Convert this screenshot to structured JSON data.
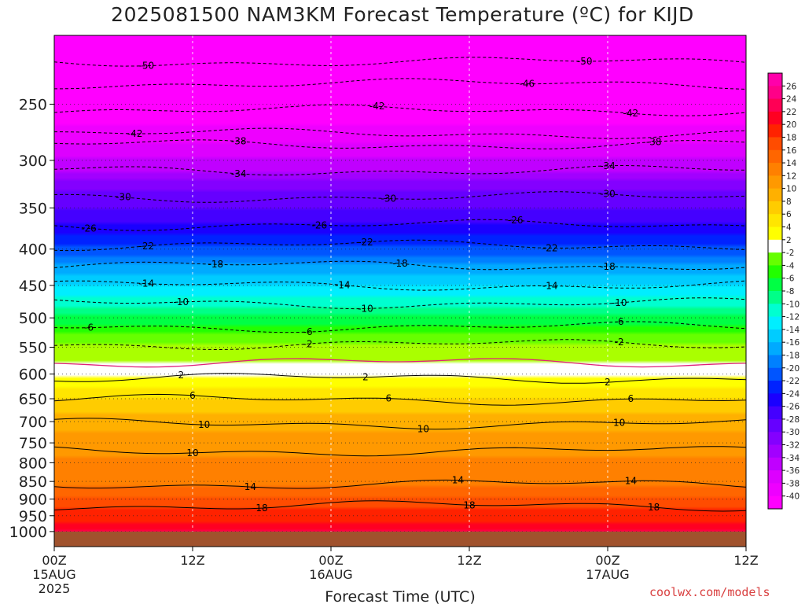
{
  "title": "2025081500 NAM3KM Forecast Temperature (ºC) for KIJD",
  "watermark": "coolwx.com/models",
  "chart_data": {
    "type": "heatmap",
    "title": "2025081500 NAM3KM Forecast Temperature (ºC) for KIJD",
    "xlabel": "Forecast Time (UTC)",
    "ylabel": "",
    "x_range_hours": [
      0,
      60
    ],
    "y_scale": "log-pressure",
    "y_range_hPa": [
      1050,
      200
    ],
    "grid": true,
    "x_ticks": [
      {
        "hour": 0,
        "label": "00Z",
        "sub1": "15AUG",
        "sub2": "2025"
      },
      {
        "hour": 12,
        "label": "12Z",
        "sub1": "",
        "sub2": ""
      },
      {
        "hour": 24,
        "label": "00Z",
        "sub1": "16AUG",
        "sub2": ""
      },
      {
        "hour": 36,
        "label": "12Z",
        "sub1": "",
        "sub2": ""
      },
      {
        "hour": 48,
        "label": "00Z",
        "sub1": "17AUG",
        "sub2": ""
      },
      {
        "hour": 60,
        "label": "12Z",
        "sub1": "",
        "sub2": ""
      }
    ],
    "y_ticks": [
      {
        "p": 250,
        "label": "250"
      },
      {
        "p": 300,
        "label": "300"
      },
      {
        "p": 350,
        "label": "350"
      },
      {
        "p": 400,
        "label": "400"
      },
      {
        "p": 450,
        "label": "450"
      },
      {
        "p": 500,
        "label": "500"
      },
      {
        "p": 550,
        "label": "550"
      },
      {
        "p": 600,
        "label": "600"
      },
      {
        "p": 650,
        "label": "650"
      },
      {
        "p": 700,
        "label": "700"
      },
      {
        "p": 750,
        "label": "750"
      },
      {
        "p": 800,
        "label": "800"
      },
      {
        "p": 850,
        "label": "850"
      },
      {
        "p": 900,
        "label": "900"
      },
      {
        "p": 950,
        "label": "950"
      },
      {
        "p": 1000,
        "label": "1000"
      }
    ],
    "surface_pressure_hPa": 1000,
    "surface_color": "#a0522d",
    "temperature_profile": [
      {
        "p": 200,
        "t": -52
      },
      {
        "p": 220,
        "t": -50
      },
      {
        "p": 235,
        "t": -46
      },
      {
        "p": 250,
        "t": -42
      },
      {
        "p": 282,
        "t": -38
      },
      {
        "p": 310,
        "t": -34
      },
      {
        "p": 330,
        "t": -30
      },
      {
        "p": 370,
        "t": -26
      },
      {
        "p": 395,
        "t": -22
      },
      {
        "p": 420,
        "t": -18
      },
      {
        "p": 450,
        "t": -14
      },
      {
        "p": 483,
        "t": -10
      },
      {
        "p": 510,
        "t": -6
      },
      {
        "p": 545,
        "t": -2
      },
      {
        "p": 575,
        "t": 0
      },
      {
        "p": 605,
        "t": 2
      },
      {
        "p": 650,
        "t": 6
      },
      {
        "p": 720,
        "t": 10
      },
      {
        "p": 860,
        "t": 14
      },
      {
        "p": 930,
        "t": 18
      },
      {
        "p": 975,
        "t": 20
      },
      {
        "p": 1000,
        "t": 22
      }
    ],
    "contours": [
      {
        "t": -50,
        "p": 218,
        "color": "#000000",
        "dashed": true,
        "labels": [
          {
            "hour": 8,
            "text": "-50"
          },
          {
            "hour": 46,
            "text": "-50"
          }
        ]
      },
      {
        "t": -46,
        "p": 234,
        "color": "#000000",
        "dashed": true,
        "labels": [
          {
            "hour": 41,
            "text": "-46"
          }
        ]
      },
      {
        "t": -42,
        "p": 255,
        "color": "#000000",
        "dashed": true,
        "labels": [
          {
            "hour": 28,
            "text": "-42"
          },
          {
            "hour": 50,
            "text": "-42"
          }
        ]
      },
      {
        "t": -42,
        "p": 275,
        "color": "#000000",
        "dashed": true,
        "labels": [
          {
            "hour": 7,
            "text": "-42"
          }
        ]
      },
      {
        "t": -38,
        "p": 285,
        "color": "#000000",
        "dashed": true,
        "labels": [
          {
            "hour": 16,
            "text": "-38"
          },
          {
            "hour": 52,
            "text": "-38"
          }
        ]
      },
      {
        "t": -34,
        "p": 310,
        "color": "#000000",
        "dashed": true,
        "labels": [
          {
            "hour": 16,
            "text": "-34"
          },
          {
            "hour": 48,
            "text": "-34"
          }
        ]
      },
      {
        "t": -30,
        "p": 338,
        "color": "#000000",
        "dashed": true,
        "labels": [
          {
            "hour": 6,
            "text": "-30"
          },
          {
            "hour": 29,
            "text": "-30"
          },
          {
            "hour": 48,
            "text": "-30"
          }
        ]
      },
      {
        "t": -26,
        "p": 370,
        "color": "#000000",
        "dashed": true,
        "labels": [
          {
            "hour": 3,
            "text": "-26"
          },
          {
            "hour": 23,
            "text": "-26"
          },
          {
            "hour": 40,
            "text": "-26"
          }
        ]
      },
      {
        "t": -22,
        "p": 395,
        "color": "#000000",
        "dashed": true,
        "labels": [
          {
            "hour": 8,
            "text": "-22"
          },
          {
            "hour": 27,
            "text": "-22"
          },
          {
            "hour": 43,
            "text": "-22"
          }
        ]
      },
      {
        "t": -18,
        "p": 422,
        "color": "#000000",
        "dashed": true,
        "labels": [
          {
            "hour": 14,
            "text": "-18"
          },
          {
            "hour": 30,
            "text": "-18"
          },
          {
            "hour": 48,
            "text": "-18"
          }
        ]
      },
      {
        "t": -14,
        "p": 450,
        "color": "#000000",
        "dashed": true,
        "labels": [
          {
            "hour": 8,
            "text": "-14"
          },
          {
            "hour": 25,
            "text": "-14"
          },
          {
            "hour": 43,
            "text": "-14"
          }
        ]
      },
      {
        "t": -10,
        "p": 477,
        "color": "#000000",
        "dashed": true,
        "labels": [
          {
            "hour": 11,
            "text": "-10"
          },
          {
            "hour": 27,
            "text": "-10"
          },
          {
            "hour": 49,
            "text": "-10"
          }
        ]
      },
      {
        "t": -6,
        "p": 515,
        "color": "#000000",
        "dashed": true,
        "labels": [
          {
            "hour": 3,
            "text": "-6"
          },
          {
            "hour": 22,
            "text": "-6"
          },
          {
            "hour": 49,
            "text": "-6"
          }
        ]
      },
      {
        "t": -2,
        "p": 545,
        "color": "#000000",
        "dashed": true,
        "labels": [
          {
            "hour": 22,
            "text": "-2"
          },
          {
            "hour": 49,
            "text": "-2"
          }
        ]
      },
      {
        "t": 0,
        "p": 578,
        "color": "#e0207a",
        "dashed": false,
        "labels": []
      },
      {
        "t": 2,
        "p": 608,
        "color": "#000000",
        "dashed": false,
        "labels": [
          {
            "hour": 11,
            "text": "2"
          },
          {
            "hour": 27,
            "text": "2"
          },
          {
            "hour": 48,
            "text": "2"
          }
        ]
      },
      {
        "t": 6,
        "p": 652,
        "color": "#000000",
        "dashed": false,
        "labels": [
          {
            "hour": 12,
            "text": "6"
          },
          {
            "hour": 29,
            "text": "6"
          },
          {
            "hour": 50,
            "text": "6"
          }
        ]
      },
      {
        "t": 10,
        "p": 705,
        "color": "#000000",
        "dashed": false,
        "labels": [
          {
            "hour": 13,
            "text": "10"
          },
          {
            "hour": 32,
            "text": "10"
          },
          {
            "hour": 49,
            "text": "10"
          }
        ]
      },
      {
        "t": 10,
        "p": 770,
        "color": "#000000",
        "dashed": false,
        "labels": [
          {
            "hour": 12,
            "text": "10"
          }
        ]
      },
      {
        "t": 14,
        "p": 858,
        "color": "#000000",
        "dashed": false,
        "labels": [
          {
            "hour": 17,
            "text": "14"
          },
          {
            "hour": 35,
            "text": "14"
          },
          {
            "hour": 50,
            "text": "14"
          }
        ]
      },
      {
        "t": 18,
        "p": 920,
        "color": "#000000",
        "dashed": false,
        "labels": [
          {
            "hour": 18,
            "text": "18"
          },
          {
            "hour": 36,
            "text": "18"
          },
          {
            "hour": 52,
            "text": "18"
          }
        ]
      }
    ],
    "colorbar": {
      "levels": [
        -40,
        -38,
        -36,
        -34,
        -32,
        -30,
        -28,
        -26,
        -24,
        -22,
        -20,
        -18,
        -16,
        -14,
        -12,
        -10,
        -8,
        -6,
        -4,
        -2,
        2,
        4,
        6,
        8,
        10,
        12,
        14,
        16,
        18,
        20,
        22,
        24,
        26
      ],
      "labels": [
        "26",
        "24",
        "22",
        "20",
        "18",
        "16",
        "14",
        "12",
        "10",
        "8",
        "6",
        "4",
        "2",
        "-2",
        "-4",
        "-6",
        "-8",
        "-10",
        "-12",
        "-14",
        "-16",
        "-18",
        "-20",
        "-22",
        "-24",
        "-26",
        "-28",
        "-30",
        "-32",
        "-34",
        "-36",
        "-38",
        "-40"
      ],
      "colors": [
        {
          "t": -42,
          "c": "#ff00ff"
        },
        {
          "t": -40,
          "c": "#ee00ff"
        },
        {
          "t": -38,
          "c": "#dd00ff"
        },
        {
          "t": -36,
          "c": "#c000ff"
        },
        {
          "t": -34,
          "c": "#a200ff"
        },
        {
          "t": -32,
          "c": "#8400ff"
        },
        {
          "t": -30,
          "c": "#6600ff"
        },
        {
          "t": -28,
          "c": "#4400ff"
        },
        {
          "t": -26,
          "c": "#1a00ff"
        },
        {
          "t": -24,
          "c": "#0022ff"
        },
        {
          "t": -22,
          "c": "#0055ff"
        },
        {
          "t": -20,
          "c": "#0080ff"
        },
        {
          "t": -18,
          "c": "#00aaff"
        },
        {
          "t": -16,
          "c": "#00ccff"
        },
        {
          "t": -14,
          "c": "#00eeff"
        },
        {
          "t": -12,
          "c": "#00ffd0"
        },
        {
          "t": -10,
          "c": "#00ff88"
        },
        {
          "t": -8,
          "c": "#00ff44"
        },
        {
          "t": -6,
          "c": "#22ff00"
        },
        {
          "t": -4,
          "c": "#66ff00"
        },
        {
          "t": -2,
          "c": "#aaff00"
        },
        {
          "t": 0,
          "c": "#ffffff"
        },
        {
          "t": 2,
          "c": "#ffff00"
        },
        {
          "t": 4,
          "c": "#ffe600"
        },
        {
          "t": 6,
          "c": "#ffcc00"
        },
        {
          "t": 8,
          "c": "#ffb000"
        },
        {
          "t": 10,
          "c": "#ff9900"
        },
        {
          "t": 12,
          "c": "#ff8000"
        },
        {
          "t": 14,
          "c": "#ff6600"
        },
        {
          "t": 16,
          "c": "#ff4c00"
        },
        {
          "t": 18,
          "c": "#ff2200"
        },
        {
          "t": 20,
          "c": "#ff0022"
        },
        {
          "t": 22,
          "c": "#ff0055"
        },
        {
          "t": 24,
          "c": "#ff0088"
        },
        {
          "t": 26,
          "c": "#ff00aa"
        }
      ]
    }
  }
}
